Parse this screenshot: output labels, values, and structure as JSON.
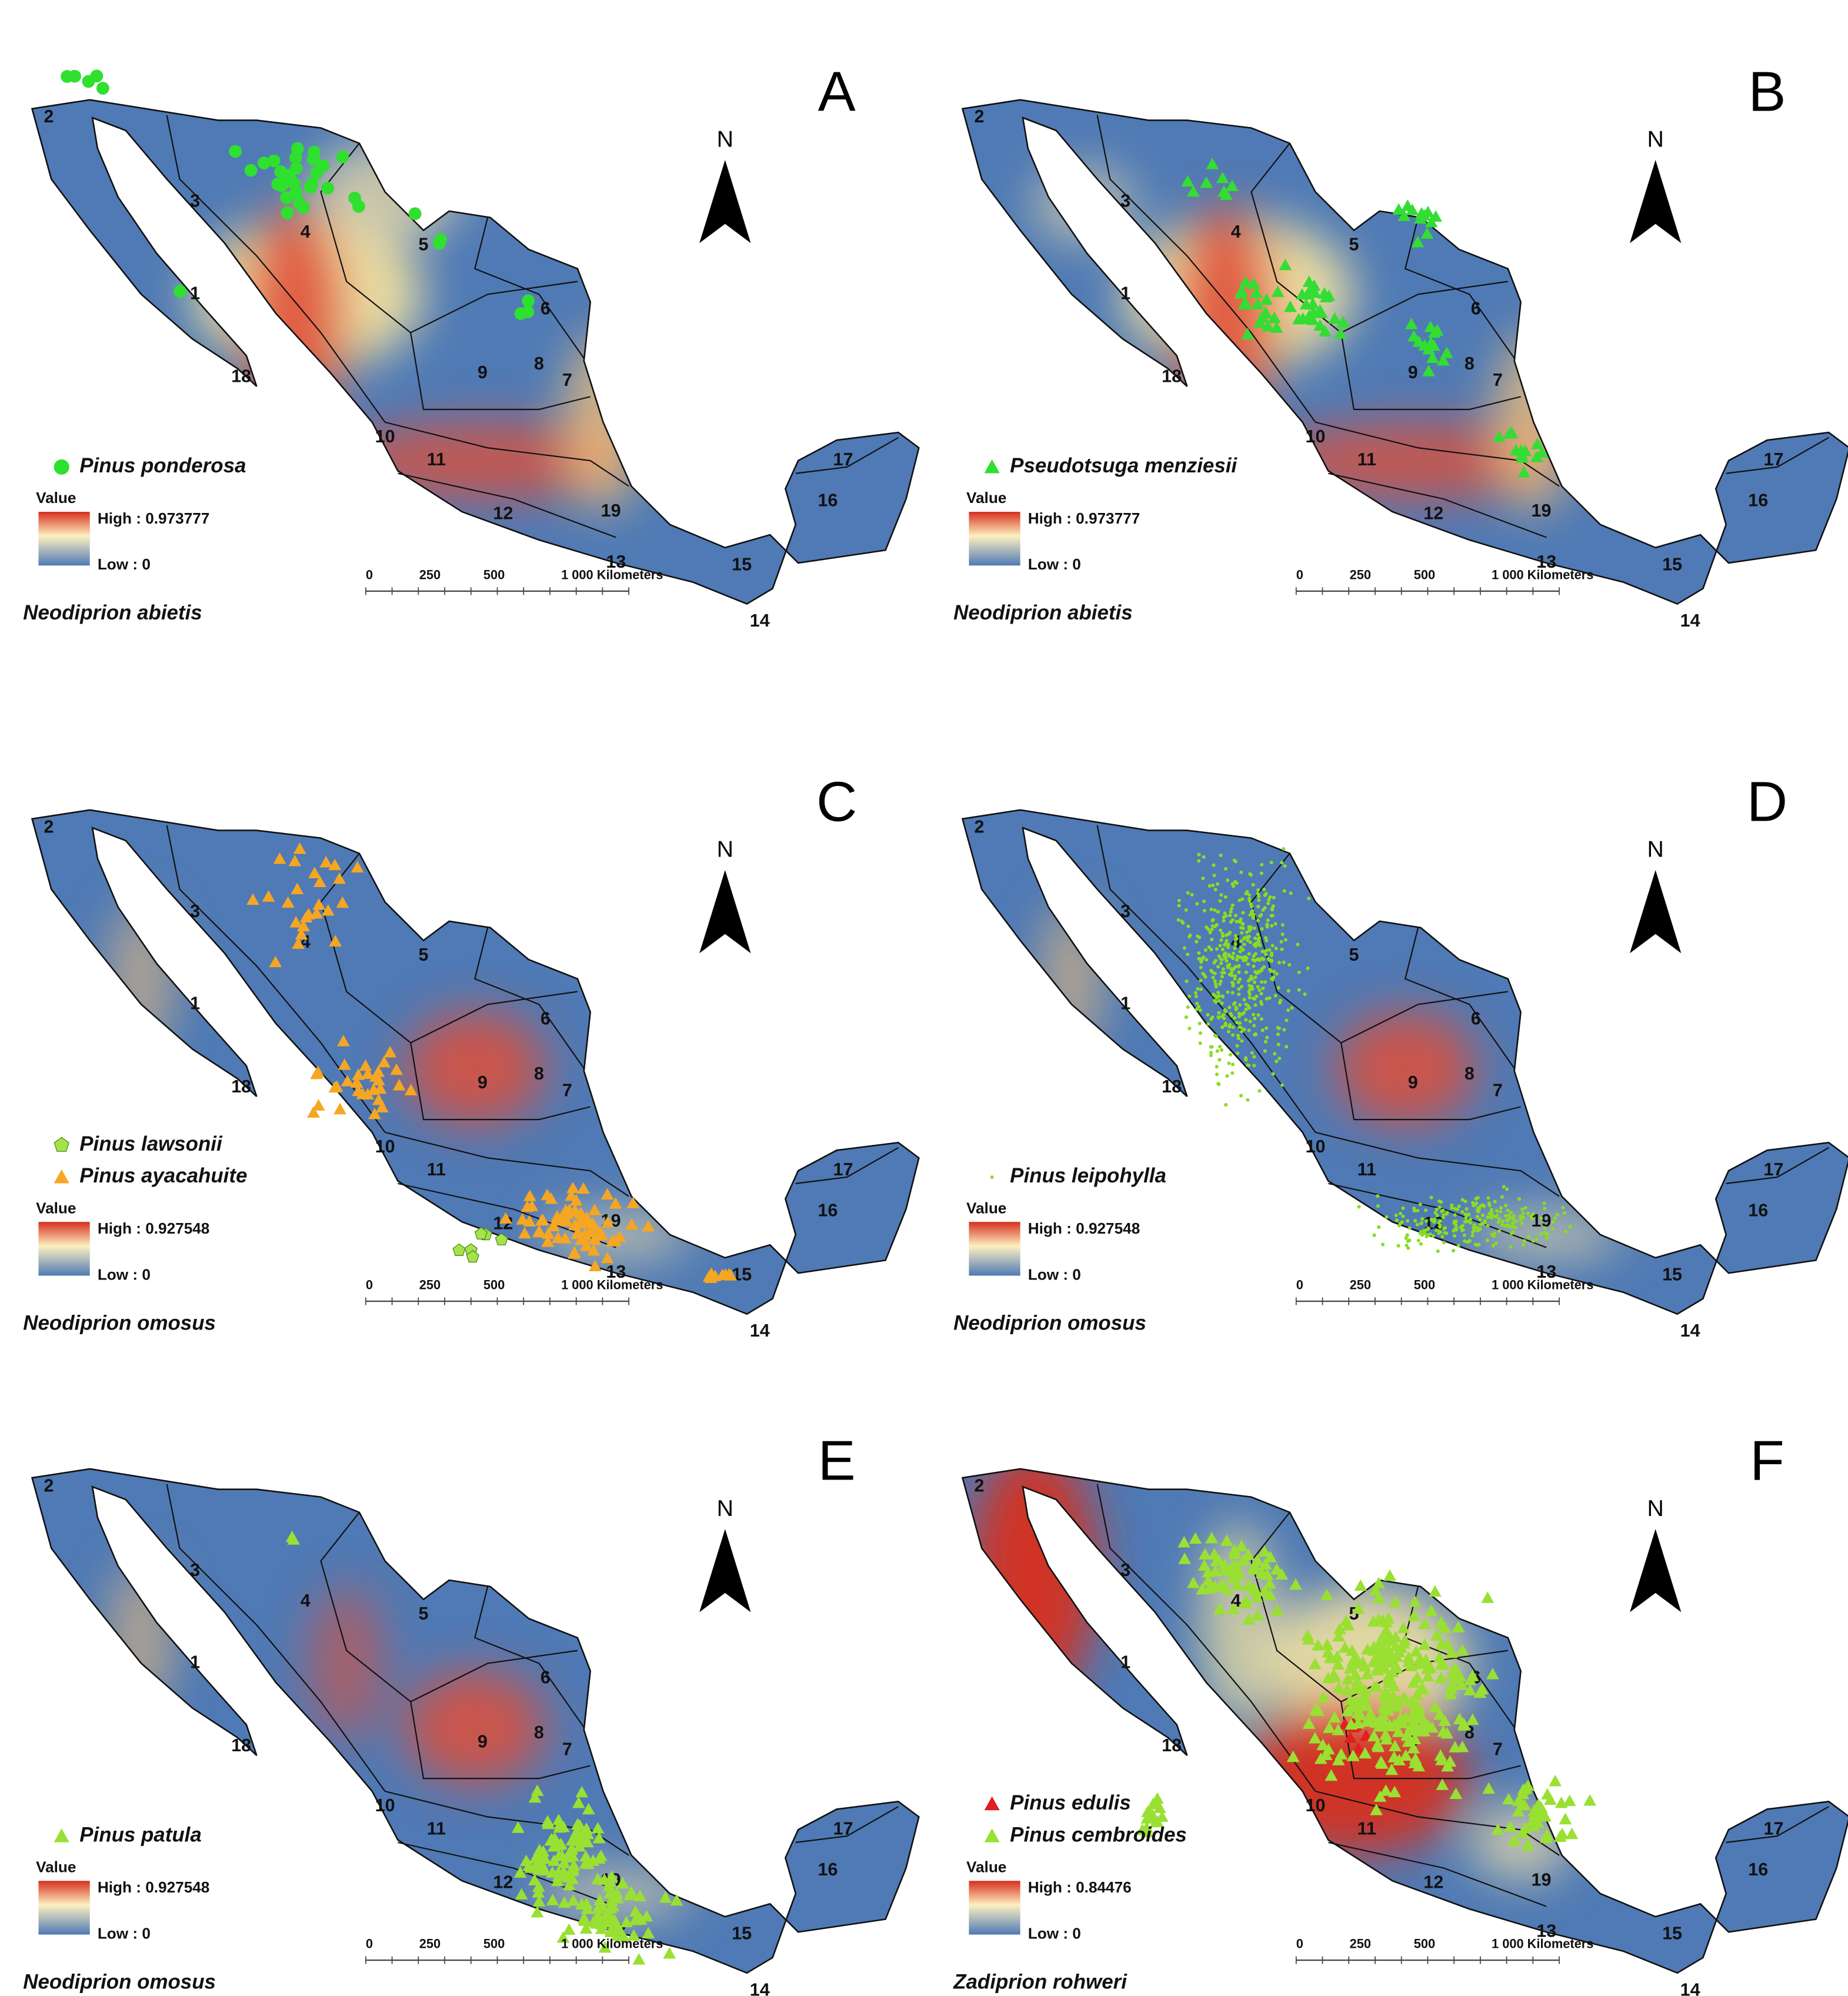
{
  "region_labels": [
    "1",
    "2",
    "3",
    "4",
    "5",
    "6",
    "7",
    "8",
    "9",
    "10",
    "11",
    "12",
    "13",
    "14",
    "15",
    "16",
    "17",
    "18",
    "19"
  ],
  "north": "N",
  "legend_value": "Value",
  "low": "Low : 0",
  "scale": [
    "0",
    "250",
    "500",
    "1 000 Kilometers"
  ],
  "panels": [
    {
      "letter": "A",
      "species": [
        {
          "name": "Pinus ponderosa",
          "marker": "circle",
          "color": "#2fe02f"
        }
      ],
      "high": "High : 0.973777",
      "target": "Neodiprion abietis"
    },
    {
      "letter": "B",
      "species": [
        {
          "name": "Pseudotsuga menziesii",
          "marker": "triangle",
          "color": "#33dd33"
        }
      ],
      "high": "High : 0.973777",
      "target": "Neodiprion abietis"
    },
    {
      "letter": "C",
      "species": [
        {
          "name": "Pinus lawsonii",
          "marker": "pentagon",
          "color": "#a6e34a"
        },
        {
          "name": "Pinus ayacahuite",
          "marker": "triangle",
          "color": "#f5a623"
        }
      ],
      "high": "High : 0.927548",
      "target": "Neodiprion omosus"
    },
    {
      "letter": "D",
      "species": [
        {
          "name": "Pinus leipohylla",
          "marker": "dot",
          "color": "#88dd22"
        }
      ],
      "high": "High : 0.927548",
      "target": "Neodiprion omosus"
    },
    {
      "letter": "E",
      "species": [
        {
          "name": "Pinus patula",
          "marker": "triangle",
          "color": "#99e033"
        }
      ],
      "high": "High : 0.927548",
      "target": "Neodiprion omosus"
    },
    {
      "letter": "F",
      "species": [
        {
          "name": "Pinus edulis",
          "marker": "triangle",
          "color": "#e02020"
        },
        {
          "name": "Pinus cembroides",
          "marker": "triangle",
          "color": "#99e033"
        }
      ],
      "high": "High : 0.84476",
      "target": "Zadiprion rohweri"
    }
  ]
}
